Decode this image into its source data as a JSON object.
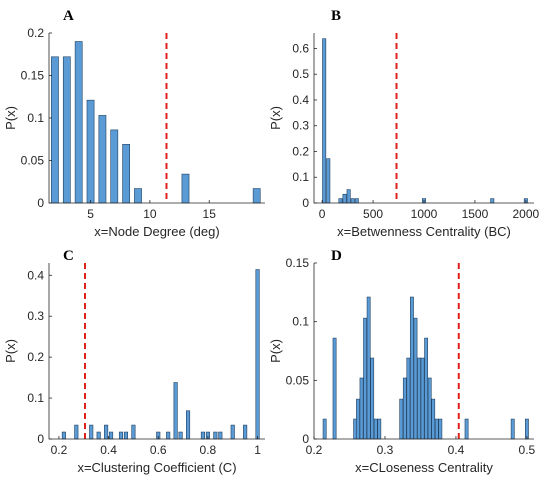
{
  "chart_data": [
    {
      "panel": "A",
      "type": "bar",
      "xlabel": "x=Node Degree (deg)",
      "ylabel": "P(x)",
      "xlim": [
        1.5,
        19.7
      ],
      "ylim": [
        0,
        0.2
      ],
      "xticks": [
        "5",
        "10",
        "15"
      ],
      "xtick_values": [
        5,
        10,
        15
      ],
      "yticks": [
        "0",
        "0.05",
        "0.1",
        "0.15",
        "0.2"
      ],
      "ytick_values": [
        0,
        0.05,
        0.1,
        0.15,
        0.2
      ],
      "bar_width": 0.6,
      "x": [
        2,
        3,
        4,
        5,
        6,
        7,
        8,
        9,
        13,
        19
      ],
      "values": [
        0.172,
        0.172,
        0.19,
        0.121,
        0.103,
        0.086,
        0.069,
        0.017,
        0.034,
        0.017
      ],
      "reference_line_x": 11.4,
      "bar_color": "#5b9bd5",
      "reference_color": "#e0201b"
    },
    {
      "panel": "B",
      "type": "bar",
      "xlabel": "x=Betwenness Centrality (BC)",
      "ylabel": "P(x)",
      "xlim": [
        -80,
        2080
      ],
      "ylim": [
        0,
        0.66
      ],
      "xticks": [
        "0",
        "500",
        "1000",
        "1500",
        "2000"
      ],
      "xtick_values": [
        0,
        500,
        1000,
        1500,
        2000
      ],
      "yticks": [
        "0",
        "0.1",
        "0.2",
        "0.3",
        "0.4",
        "0.5",
        "0.6"
      ],
      "ytick_values": [
        0,
        0.1,
        0.2,
        0.3,
        0.4,
        0.5,
        0.6
      ],
      "bar_width": 33,
      "x": [
        20,
        60,
        180,
        220,
        260,
        300,
        340,
        1000,
        1670,
        2000
      ],
      "values": [
        0.638,
        0.172,
        0.017,
        0.034,
        0.052,
        0.017,
        0.017,
        0.017,
        0.017,
        0.017
      ],
      "reference_line_x": 730,
      "bar_color": "#5b9bd5",
      "reference_color": "#e0201b"
    },
    {
      "panel": "C",
      "type": "bar",
      "xlabel": "x=Clustering Coefficient (C)",
      "ylabel": "P(x)",
      "xlim": [
        0.16,
        1.03
      ],
      "ylim": [
        0,
        0.43
      ],
      "xticks": [
        "0.2",
        "0.4",
        "0.6",
        "0.8",
        "1"
      ],
      "xtick_values": [
        0.2,
        0.4,
        0.6,
        0.8,
        1.0
      ],
      "yticks": [
        "0",
        "0.1",
        "0.2",
        "0.3",
        "0.4"
      ],
      "ytick_values": [
        0,
        0.1,
        0.2,
        0.3,
        0.4
      ],
      "bar_width": 0.014,
      "x": [
        0.22,
        0.27,
        0.33,
        0.36,
        0.39,
        0.41,
        0.45,
        0.47,
        0.5,
        0.6,
        0.64,
        0.67,
        0.69,
        0.72,
        0.78,
        0.8,
        0.83,
        0.85,
        0.9,
        0.95,
        1.0
      ],
      "values": [
        0.017,
        0.034,
        0.034,
        0.017,
        0.034,
        0.017,
        0.017,
        0.017,
        0.034,
        0.017,
        0.017,
        0.138,
        0.017,
        0.069,
        0.017,
        0.017,
        0.017,
        0.017,
        0.034,
        0.034,
        0.414
      ],
      "reference_line_x": 0.305,
      "bar_color": "#5b9bd5",
      "reference_color": "#e0201b"
    },
    {
      "panel": "D",
      "type": "bar",
      "xlabel": "x=CLoseness Centrality",
      "ylabel": "P(x)",
      "xlim": [
        0.2,
        0.51
      ],
      "ylim": [
        0,
        0.15
      ],
      "xticks": [
        "0.2",
        "0.3",
        "0.4",
        "0.5"
      ],
      "xtick_values": [
        0.2,
        0.3,
        0.4,
        0.5
      ],
      "yticks": [
        "0",
        "0.05",
        "0.1",
        "0.15"
      ],
      "ytick_values": [
        0,
        0.05,
        0.1,
        0.15
      ],
      "bar_width": 0.0045,
      "x": [
        0.215,
        0.229,
        0.258,
        0.262,
        0.267,
        0.272,
        0.277,
        0.282,
        0.287,
        0.292,
        0.323,
        0.328,
        0.333,
        0.338,
        0.343,
        0.348,
        0.353,
        0.358,
        0.363,
        0.368,
        0.373,
        0.378,
        0.415,
        0.48,
        0.5
      ],
      "values": [
        0.017,
        0.086,
        0.017,
        0.034,
        0.052,
        0.103,
        0.121,
        0.069,
        0.017,
        0.017,
        0.034,
        0.052,
        0.069,
        0.121,
        0.103,
        0.069,
        0.069,
        0.086,
        0.052,
        0.034,
        0.017,
        0.017,
        0.017,
        0.017,
        0.017
      ],
      "reference_line_x": 0.404,
      "bar_color": "#5b9bd5",
      "reference_color": "#e0201b"
    }
  ]
}
